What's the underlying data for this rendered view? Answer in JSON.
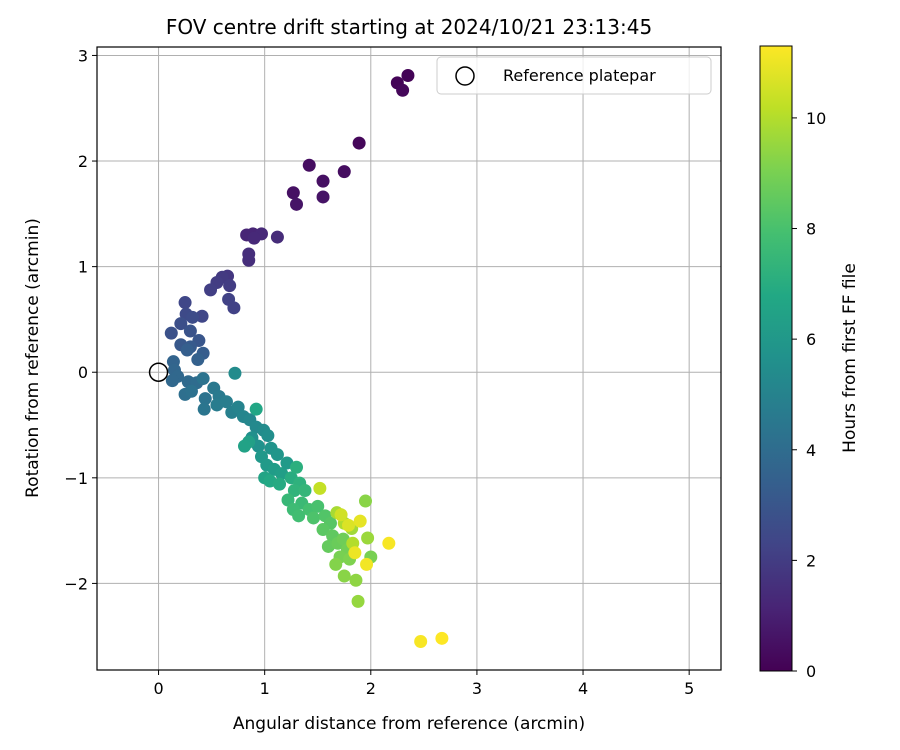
{
  "chart_data": {
    "type": "scatter",
    "title": "FOV centre drift starting at 2024/10/21 23:13:45",
    "xlabel": "Angular distance from reference (arcmin)",
    "ylabel": "Rotation from reference (arcmin)",
    "xlim": [
      -0.58,
      5.3
    ],
    "ylim": [
      -2.82,
      3.08
    ],
    "xticks": [
      "0",
      "1",
      "2",
      "3",
      "4",
      "5"
    ],
    "yticks": [
      "−2",
      "−1",
      "0",
      "1",
      "2",
      "3"
    ],
    "grid": true,
    "legend": {
      "position": "top-right",
      "entries": [
        "Reference platepar"
      ]
    },
    "reference_point": {
      "name": "Reference platepar",
      "x": 0,
      "y": 0
    },
    "colorbar": {
      "label": "Hours from first FF file",
      "min": 0,
      "max": 11.3,
      "ticks": [
        "0",
        "2",
        "4",
        "6",
        "8",
        "10"
      ],
      "colormap": "viridis"
    },
    "points": [
      {
        "x": 2.35,
        "y": 2.81,
        "c": 0.1
      },
      {
        "x": 2.25,
        "y": 2.74,
        "c": 0.1
      },
      {
        "x": 2.3,
        "y": 2.67,
        "c": 0.2
      },
      {
        "x": 1.89,
        "y": 2.17,
        "c": 0.2
      },
      {
        "x": 1.42,
        "y": 1.96,
        "c": 0.4
      },
      {
        "x": 1.75,
        "y": 1.9,
        "c": 0.4
      },
      {
        "x": 1.55,
        "y": 1.81,
        "c": 0.5
      },
      {
        "x": 1.27,
        "y": 1.7,
        "c": 0.5
      },
      {
        "x": 1.55,
        "y": 1.66,
        "c": 0.6
      },
      {
        "x": 1.3,
        "y": 1.59,
        "c": 0.6
      },
      {
        "x": 0.83,
        "y": 1.3,
        "c": 1.2
      },
      {
        "x": 0.89,
        "y": 1.31,
        "c": 1.2
      },
      {
        "x": 0.97,
        "y": 1.31,
        "c": 1.3
      },
      {
        "x": 0.9,
        "y": 1.27,
        "c": 1.3
      },
      {
        "x": 1.12,
        "y": 1.28,
        "c": 1.4
      },
      {
        "x": 0.85,
        "y": 1.12,
        "c": 1.5
      },
      {
        "x": 0.85,
        "y": 1.06,
        "c": 1.5
      },
      {
        "x": 0.65,
        "y": 0.91,
        "c": 1.8
      },
      {
        "x": 0.6,
        "y": 0.9,
        "c": 1.9
      },
      {
        "x": 0.67,
        "y": 0.82,
        "c": 2.0
      },
      {
        "x": 0.55,
        "y": 0.85,
        "c": 2.0
      },
      {
        "x": 0.49,
        "y": 0.78,
        "c": 2.1
      },
      {
        "x": 0.66,
        "y": 0.69,
        "c": 2.2
      },
      {
        "x": 0.71,
        "y": 0.61,
        "c": 2.2
      },
      {
        "x": 0.41,
        "y": 0.53,
        "c": 2.4
      },
      {
        "x": 0.25,
        "y": 0.66,
        "c": 2.4
      },
      {
        "x": 0.26,
        "y": 0.55,
        "c": 2.5
      },
      {
        "x": 0.32,
        "y": 0.52,
        "c": 2.6
      },
      {
        "x": 0.21,
        "y": 0.46,
        "c": 2.7
      },
      {
        "x": 0.12,
        "y": 0.37,
        "c": 2.8
      },
      {
        "x": 0.3,
        "y": 0.39,
        "c": 2.9
      },
      {
        "x": 0.38,
        "y": 0.3,
        "c": 3.0
      },
      {
        "x": 0.21,
        "y": 0.26,
        "c": 3.1
      },
      {
        "x": 0.3,
        "y": 0.24,
        "c": 3.2
      },
      {
        "x": 0.42,
        "y": 0.18,
        "c": 3.3
      },
      {
        "x": 0.27,
        "y": 0.21,
        "c": 3.4
      },
      {
        "x": 0.37,
        "y": 0.12,
        "c": 3.5
      },
      {
        "x": 0.14,
        "y": 0.1,
        "c": 3.6
      },
      {
        "x": 0.15,
        "y": 0.02,
        "c": 3.7
      },
      {
        "x": 0.18,
        "y": -0.04,
        "c": 3.8
      },
      {
        "x": 0.13,
        "y": -0.08,
        "c": 3.8
      },
      {
        "x": 0.28,
        "y": -0.09,
        "c": 3.9
      },
      {
        "x": 0.36,
        "y": -0.1,
        "c": 4.0
      },
      {
        "x": 0.25,
        "y": -0.21,
        "c": 4.1
      },
      {
        "x": 0.31,
        "y": -0.18,
        "c": 4.2
      },
      {
        "x": 0.42,
        "y": -0.06,
        "c": 4.3
      },
      {
        "x": 0.44,
        "y": -0.25,
        "c": 4.3
      },
      {
        "x": 0.43,
        "y": -0.35,
        "c": 4.4
      },
      {
        "x": 0.52,
        "y": -0.15,
        "c": 4.5
      },
      {
        "x": 0.57,
        "y": -0.23,
        "c": 4.6
      },
      {
        "x": 0.55,
        "y": -0.31,
        "c": 4.7
      },
      {
        "x": 0.64,
        "y": -0.28,
        "c": 4.8
      },
      {
        "x": 0.69,
        "y": -0.38,
        "c": 4.9
      },
      {
        "x": 0.75,
        "y": -0.33,
        "c": 5.0
      },
      {
        "x": 0.8,
        "y": -0.42,
        "c": 5.1
      },
      {
        "x": 0.72,
        "y": -0.01,
        "c": 5.4
      },
      {
        "x": 0.86,
        "y": -0.45,
        "c": 5.2
      },
      {
        "x": 0.92,
        "y": -0.52,
        "c": 5.3
      },
      {
        "x": 0.99,
        "y": -0.55,
        "c": 5.4
      },
      {
        "x": 1.03,
        "y": -0.6,
        "c": 5.5
      },
      {
        "x": 0.88,
        "y": -0.62,
        "c": 5.6
      },
      {
        "x": 0.94,
        "y": -0.7,
        "c": 5.7
      },
      {
        "x": 1.06,
        "y": -0.72,
        "c": 5.8
      },
      {
        "x": 1.12,
        "y": -0.78,
        "c": 5.9
      },
      {
        "x": 0.97,
        "y": -0.8,
        "c": 6.0
      },
      {
        "x": 1.02,
        "y": -0.88,
        "c": 6.1
      },
      {
        "x": 1.09,
        "y": -0.92,
        "c": 6.2
      },
      {
        "x": 1.16,
        "y": -0.96,
        "c": 6.3
      },
      {
        "x": 1.21,
        "y": -0.86,
        "c": 6.1
      },
      {
        "x": 0.85,
        "y": -0.66,
        "c": 6.4
      },
      {
        "x": 0.92,
        "y": -0.35,
        "c": 6.7
      },
      {
        "x": 0.81,
        "y": -0.7,
        "c": 6.5
      },
      {
        "x": 1.0,
        "y": -1.0,
        "c": 6.6
      },
      {
        "x": 1.05,
        "y": -1.03,
        "c": 6.8
      },
      {
        "x": 1.14,
        "y": -1.06,
        "c": 6.9
      },
      {
        "x": 1.25,
        "y": -1.0,
        "c": 7.0
      },
      {
        "x": 1.3,
        "y": -0.9,
        "c": 7.1
      },
      {
        "x": 1.33,
        "y": -1.05,
        "c": 7.2
      },
      {
        "x": 1.28,
        "y": -1.12,
        "c": 7.3
      },
      {
        "x": 1.38,
        "y": -1.12,
        "c": 7.4
      },
      {
        "x": 1.22,
        "y": -1.21,
        "c": 7.5
      },
      {
        "x": 1.35,
        "y": -1.24,
        "c": 7.6
      },
      {
        "x": 1.27,
        "y": -1.3,
        "c": 7.7
      },
      {
        "x": 1.32,
        "y": -1.36,
        "c": 7.8
      },
      {
        "x": 1.42,
        "y": -1.3,
        "c": 7.9
      },
      {
        "x": 1.5,
        "y": -1.27,
        "c": 8.0
      },
      {
        "x": 1.46,
        "y": -1.38,
        "c": 8.1
      },
      {
        "x": 1.57,
        "y": -1.36,
        "c": 8.2
      },
      {
        "x": 1.62,
        "y": -1.43,
        "c": 8.3
      },
      {
        "x": 1.55,
        "y": -1.49,
        "c": 8.4
      },
      {
        "x": 1.64,
        "y": -1.55,
        "c": 8.5
      },
      {
        "x": 1.6,
        "y": -1.65,
        "c": 8.6
      },
      {
        "x": 1.69,
        "y": -1.62,
        "c": 8.7
      },
      {
        "x": 1.74,
        "y": -1.58,
        "c": 8.8
      },
      {
        "x": 1.78,
        "y": -1.68,
        "c": 8.9
      },
      {
        "x": 1.71,
        "y": -1.75,
        "c": 9.0
      },
      {
        "x": 1.8,
        "y": -1.77,
        "c": 9.1
      },
      {
        "x": 1.67,
        "y": -1.82,
        "c": 9.2
      },
      {
        "x": 1.75,
        "y": -1.93,
        "c": 9.3
      },
      {
        "x": 1.86,
        "y": -1.97,
        "c": 9.4
      },
      {
        "x": 1.88,
        "y": -2.17,
        "c": 9.5
      },
      {
        "x": 1.97,
        "y": -1.57,
        "c": 9.6
      },
      {
        "x": 1.82,
        "y": -1.48,
        "c": 9.7
      },
      {
        "x": 1.68,
        "y": -1.33,
        "c": 9.8
      },
      {
        "x": 1.75,
        "y": -1.43,
        "c": 9.9
      },
      {
        "x": 1.83,
        "y": -1.62,
        "c": 10.0
      },
      {
        "x": 1.95,
        "y": -1.22,
        "c": 9.3
      },
      {
        "x": 2.0,
        "y": -1.75,
        "c": 9.0
      },
      {
        "x": 1.52,
        "y": -1.1,
        "c": 10.3
      },
      {
        "x": 1.72,
        "y": -1.35,
        "c": 10.5
      },
      {
        "x": 1.79,
        "y": -1.45,
        "c": 10.7
      },
      {
        "x": 1.9,
        "y": -1.41,
        "c": 10.9
      },
      {
        "x": 1.85,
        "y": -1.71,
        "c": 11.0
      },
      {
        "x": 1.96,
        "y": -1.82,
        "c": 11.1
      },
      {
        "x": 2.17,
        "y": -1.62,
        "c": 11.2
      },
      {
        "x": 2.47,
        "y": -2.55,
        "c": 11.2
      },
      {
        "x": 2.67,
        "y": -2.52,
        "c": 11.3
      }
    ]
  }
}
